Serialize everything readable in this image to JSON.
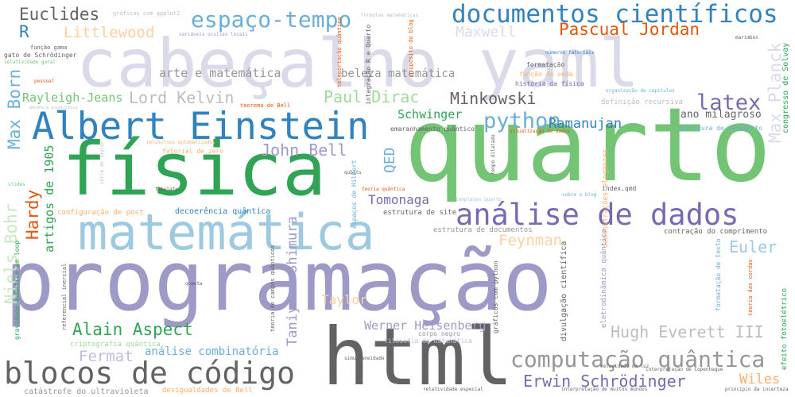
{
  "words": [
    {
      "text": "cabeçalho yaml",
      "color": "#dadaeb",
      "rot": 0,
      "key": "cabecalho-yaml"
    },
    {
      "text": "quarto",
      "color": "#74c476",
      "rot": 0,
      "key": "quarto"
    },
    {
      "text": "programação",
      "color": "#9e9ac8",
      "rot": 0,
      "key": "programacao"
    },
    {
      "text": "física",
      "color": "#31a354",
      "rot": 0,
      "key": "fisica"
    },
    {
      "text": "matemática",
      "color": "#9ecae1",
      "rot": 0,
      "key": "matematica"
    },
    {
      "text": "html",
      "color": "#636363",
      "rot": 0,
      "key": "html"
    },
    {
      "text": "Albert Einstein",
      "color": "#3182bd",
      "rot": 0,
      "key": "albert-einstein"
    },
    {
      "text": "documentos científicos",
      "color": "#3182bd",
      "rot": 0,
      "key": "documentos-cientificos"
    },
    {
      "text": "análise de dados",
      "color": "#756bb1",
      "rot": 0,
      "key": "analise-de-dados"
    },
    {
      "text": "blocos de código",
      "color": "#636363",
      "rot": 0,
      "key": "blocos-de-codigo"
    },
    {
      "text": "computação quântica",
      "color": "#969696",
      "rot": 0,
      "key": "computacao-quantica"
    },
    {
      "text": "espaço-tempo",
      "color": "#6baed6",
      "rot": 0,
      "key": "espaco-tempo"
    },
    {
      "text": "Pascual Jordan",
      "color": "#e6550d",
      "rot": 0,
      "key": "pascual-jordan"
    },
    {
      "text": "Erwin Schrödinger",
      "color": "#756bb1",
      "rot": 0,
      "key": "erwin-schrodinger"
    },
    {
      "text": "python",
      "color": "#6baed6",
      "rot": 0,
      "key": "python"
    },
    {
      "text": "Euclides",
      "color": "#636363",
      "rot": 0,
      "key": "euclides"
    },
    {
      "text": "latex",
      "color": "#756bb1",
      "rot": 0,
      "key": "latex"
    },
    {
      "text": "Littlewood",
      "color": "#fdd0a2",
      "rot": 0,
      "key": "littlewood"
    },
    {
      "text": "Maxwell",
      "color": "#dadaeb",
      "rot": 0,
      "key": "maxwell"
    },
    {
      "text": "Lord Kelvin",
      "color": "#bdbdbd",
      "rot": 0,
      "key": "lord-kelvin"
    },
    {
      "text": "Minkowski",
      "color": "#636363",
      "rot": 0,
      "key": "minkowski"
    },
    {
      "text": "Paul Dirac",
      "color": "#a1d99b",
      "rot": 0,
      "key": "paul-dirac"
    },
    {
      "text": "Ramanujan",
      "color": "#3182bd",
      "rot": 0,
      "key": "ramanujan"
    },
    {
      "text": "John Bell",
      "color": "#9e9ac8",
      "rot": 0,
      "key": "john-bell"
    },
    {
      "text": "Alain Aspect",
      "color": "#31a354",
      "rot": 0,
      "key": "alain-aspect"
    },
    {
      "text": "Hugh Everett III",
      "color": "#bdbdbd",
      "rot": 0,
      "key": "hugh-everett"
    },
    {
      "text": "Feynman",
      "color": "#fdd0a2",
      "rot": 0,
      "key": "feynman"
    },
    {
      "text": "Euler",
      "color": "#9ecae1",
      "rot": 0,
      "key": "euler"
    },
    {
      "text": "Fermat",
      "color": "#bcbddc",
      "rot": 0,
      "key": "fermat"
    },
    {
      "text": "Wiles",
      "color": "#fdae6b",
      "rot": 0,
      "key": "wiles"
    },
    {
      "text": "Taylor",
      "color": "#fdd0a2",
      "rot": 0,
      "key": "taylor"
    },
    {
      "text": "Tomonaga",
      "color": "#756bb1",
      "rot": 0,
      "key": "tomonaga"
    },
    {
      "text": "Schwinger",
      "color": "#31a354",
      "rot": 0,
      "key": "schwinger"
    },
    {
      "text": "Werner Heisenberg",
      "color": "#9e9ac8",
      "rot": 0,
      "key": "werner-heisenberg"
    },
    {
      "text": "Rayleigh-Jeans",
      "color": "#74c476",
      "rot": 0,
      "key": "rayleigh-jeans"
    },
    {
      "text": "arte e matemática",
      "color": "#969696",
      "rot": 0,
      "key": "arte-e-matematica"
    },
    {
      "text": "beleza matemática",
      "color": "#969696",
      "rot": 0,
      "key": "beleza-matematica"
    },
    {
      "text": "análise combinatória",
      "color": "#6baed6",
      "rot": 0,
      "key": "analise-combinatoria"
    },
    {
      "text": "ano milagroso",
      "color": "#636363",
      "rot": 0,
      "key": "ano-milagroso"
    },
    {
      "text": "R",
      "color": "#3182bd",
      "rot": 0,
      "key": "r"
    },
    {
      "text": "Max Born",
      "color": "#6baed6",
      "rot": -90,
      "key": "max-born"
    },
    {
      "text": "Max Planck",
      "color": "#dadaeb",
      "rot": -90,
      "key": "max-planck"
    },
    {
      "text": "Niels Bohr",
      "color": "#c7e9c0",
      "rot": -90,
      "key": "niels-bohr"
    },
    {
      "text": "Hardy",
      "color": "#e6550d",
      "rot": -90,
      "key": "hardy"
    },
    {
      "text": "artigos de 1905",
      "color": "#31a354",
      "rot": -90,
      "key": "artigos-de-1905"
    },
    {
      "text": "QED",
      "color": "#6baed6",
      "rot": -90,
      "key": "qed"
    },
    {
      "text": "Taniyama-Shimura",
      "color": "#9e9ac8",
      "rot": -90,
      "key": "taniyama-shimura"
    },
    {
      "text": "decoerência quântica",
      "color": "#3182bd",
      "rot": 0,
      "key": "decoerencia-quantica"
    },
    {
      "text": "configuração de post",
      "color": "#fdae6b",
      "rot": 0,
      "key": "configuracao-de-post"
    },
    {
      "text": "estrutura de site",
      "color": "#636363",
      "rot": 0,
      "key": "estrutura-de-site"
    },
    {
      "text": "estrutura de documentos",
      "color": "#969696",
      "rot": 0,
      "key": "estrutura-de-documentos"
    },
    {
      "text": "contração do comprimento",
      "color": "#636363",
      "rot": 0,
      "key": "contracao-do-comprimento"
    },
    {
      "text": "criptografia quântica",
      "color": "#a1d99b",
      "rot": 0,
      "key": "criptografia-quantica"
    },
    {
      "text": "catástrofe do ultravioleta",
      "color": "#969696",
      "rot": 0,
      "key": "catastrofe-do-ultravioleta"
    },
    {
      "text": "desigualdades de Bell",
      "color": "#fdae6b",
      "rot": 0,
      "key": "desigualdades-de-bell"
    },
    {
      "text": "corpo negro",
      "color": "#969696",
      "rot": 0,
      "key": "corpo-negro"
    },
    {
      "text": "filosofia da matemática",
      "color": "#bcbddc",
      "rot": 0,
      "key": "filosofia-da-matematica"
    },
    {
      "text": "index.qmd",
      "color": "#636363",
      "rot": 0,
      "key": "index-qmd"
    },
    {
      "text": "definição recursiva",
      "color": "#bdbdbd",
      "rot": 0,
      "key": "definicao-recursiva"
    },
    {
      "text": "estrutura de documento",
      "color": "#6baed6",
      "rot": 0,
      "key": "estrutura-de-documento"
    },
    {
      "text": "emaranhamento quântico",
      "color": "#636363",
      "rot": 0,
      "key": "emaranhamento-quantico"
    },
    {
      "text": "história da física",
      "color": "#756bb1",
      "rot": 0,
      "key": "historia-da-fisica"
    },
    {
      "text": "formatação",
      "color": "#636363",
      "rot": 0,
      "key": "formatacao"
    },
    {
      "text": "gráficos com ggplot2",
      "color": "#bdbdbd",
      "rot": 0,
      "key": "graficos-com-ggplot2"
    },
    {
      "text": "variáveis ocultas locais",
      "color": "#9e9ac8",
      "rot": 0,
      "key": "variaveis-ocultas-locais"
    },
    {
      "text": "gato de Schrödinger",
      "color": "#636363",
      "rot": 0,
      "key": "gato-de-schrodinger"
    },
    {
      "text": "função gama",
      "color": "#636363",
      "rot": 0,
      "key": "funcao-gama"
    },
    {
      "text": "teorema de Bell",
      "color": "#e6550d",
      "rot": 0,
      "key": "teorema-de-bell"
    },
    {
      "text": "relatividade especial",
      "color": "#636363",
      "rot": 0,
      "key": "relatividade-especial"
    },
    {
      "text": "interpretação de muitos mundos",
      "color": "#636363",
      "rot": 0,
      "key": "interpretacao-de-muitos-mundos"
    },
    {
      "text": "princípio da incerteza",
      "color": "#636363",
      "rot": 0,
      "key": "principio-da-incerteza"
    },
    {
      "text": "fórmulas matemáticas",
      "color": "#bdbdbd",
      "rot": 0,
      "key": "formulas-matematicas"
    },
    {
      "text": "função de onda",
      "color": "#fdae6b",
      "rot": 0,
      "key": "funcao-de-onda"
    },
    {
      "text": "fatorial de zero",
      "color": "#fdae6b",
      "rot": 0,
      "key": "fatorial-de-zero"
    },
    {
      "text": "relatórios automatizados",
      "color": "#fdae6b",
      "rot": 0,
      "key": "relatorios-automatizados"
    },
    {
      "text": "pessoal",
      "color": "#e6550d",
      "rot": 0,
      "key": "pessoal"
    },
    {
      "text": "mecânica estatística",
      "color": "#bdbdbd",
      "rot": 0,
      "key": "mecanica-estatistica"
    },
    {
      "text": "relatividade geral",
      "color": "#74c476",
      "rot": 0,
      "key": "relatividade-geral"
    },
    {
      "text": "templates quarto",
      "color": "#9ecae1",
      "rot": 0,
      "key": "templates-quarto"
    },
    {
      "text": "sobre o blog",
      "color": "#6baed6",
      "rot": 0,
      "key": "sobre-o-blog"
    },
    {
      "text": "teoria quântica",
      "color": "#e6550d",
      "rot": 0,
      "key": "teoria-quantica"
    },
    {
      "text": "simultaneidade",
      "color": "#636363",
      "rot": 0,
      "key": "simultaneidade"
    },
    {
      "text": "velocidade da luz",
      "color": "#636363",
      "rot": 0,
      "key": "velocidade-da-luz"
    },
    {
      "text": "interpretação de Copenhague",
      "color": "#636363",
      "rot": 0,
      "key": "interpretacao-de-copenhague"
    },
    {
      "text": "organização de capítulos",
      "color": "#6baed6",
      "rot": 0,
      "key": "organizacao-de-capitulos"
    },
    {
      "text": "visualização de dados",
      "color": "#e6550d",
      "rot": 0,
      "key": "visualizacao-de-dados"
    },
    {
      "text": "quanta",
      "color": "#636363",
      "rot": 0,
      "key": "quanta"
    },
    {
      "text": "qubits",
      "color": "#636363",
      "rot": 0,
      "key": "qubits"
    },
    {
      "text": "slides",
      "color": "#74c476",
      "rot": 0,
      "key": "slides"
    },
    {
      "text": "tabulate",
      "color": "#636363",
      "rot": 0,
      "key": "tabulate"
    },
    {
      "text": "marimbon",
      "color": "#636363",
      "rot": 0,
      "key": "marimbon"
    },
    {
      "text": "números fatoriais",
      "color": "#3182bd",
      "rot": 0,
      "key": "numeros-fatoriais"
    },
    {
      "text": "integração R e Quarto",
      "color": "#636363",
      "rot": -90,
      "key": "integracao-r-e-quarto"
    },
    {
      "text": "propósito do blog",
      "color": "#e6550d",
      "rot": -90,
      "key": "proposito-do-blog"
    },
    {
      "text": "teleportação quântica",
      "color": "#e6550d",
      "rot": -90,
      "key": "teleportacao-quantica"
    },
    {
      "text": "congresso de Solvay",
      "color": "#31a354",
      "rot": -90,
      "key": "congresso-de-solvay"
    },
    {
      "text": "demonstrações elegantes",
      "color": "#fdae6b",
      "rot": -90,
      "key": "demonstracoes-elegantes"
    },
    {
      "text": "eletrodinâmica quântica",
      "color": "#9e9ac8",
      "rot": -90,
      "key": "eletrodinamica-quantica"
    },
    {
      "text": "divulgação científica",
      "color": "#636363",
      "rot": -90,
      "key": "divulgacao-cientifica"
    },
    {
      "text": "gráficos com python",
      "color": "#636363",
      "rot": -90,
      "key": "graficos-com-python"
    },
    {
      "text": "gravidade quântica em loop",
      "color": "#31a354",
      "rot": -90,
      "key": "gravidade-quantica-em-loop"
    },
    {
      "text": "espaços de Hilbert",
      "color": "#6baed6",
      "rot": -90,
      "key": "espacos-de-hilbert"
    },
    {
      "text": "teoria de campos quânticos",
      "color": "#636363",
      "rot": -90,
      "key": "teoria-de-campos-quanticos"
    },
    {
      "text": "efeito fotoelétrico",
      "color": "#31a354",
      "rot": -90,
      "key": "efeito-fotoeletrico"
    },
    {
      "text": "formatação de texto",
      "color": "#6baed6",
      "rot": -90,
      "key": "formatacao-de-texto"
    },
    {
      "text": "teoria das cordas",
      "color": "#e6550d",
      "rot": -90,
      "key": "teoria-das-cordas"
    },
    {
      "text": "tempo dilatado",
      "color": "#636363",
      "rot": -90,
      "key": "tempo-dilatado"
    },
    {
      "text": "referencial inercial",
      "color": "#636363",
      "rot": -90,
      "key": "referencial-inercial"
    },
    {
      "text": "série de Taylor",
      "color": "#bdbdbd",
      "rot": -90,
      "key": "serie-de-taylor"
    }
  ]
}
